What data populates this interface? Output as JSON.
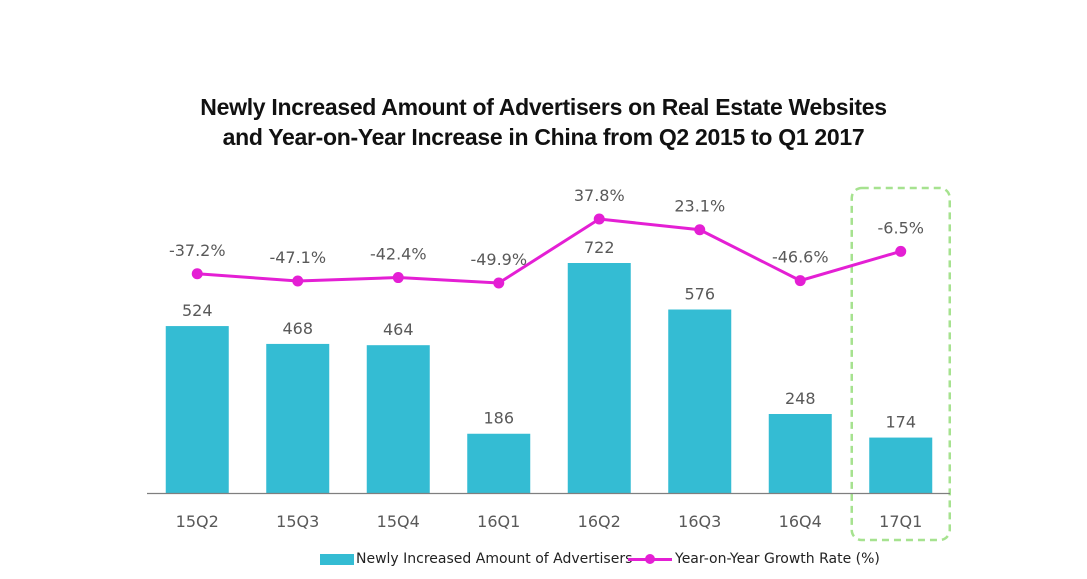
{
  "colors": {
    "bar": "#34bcd3",
    "line": "#e41fd4",
    "axis": "#7f7f7f",
    "label": "#595959",
    "highlight_box": "#a6e28f"
  },
  "chart_data": {
    "type": "bar",
    "title_lines": [
      "Newly Increased Amount of Advertisers on Real Estate Websites",
      "and Year-on-Year Increase in China from Q2 2015 to Q1 2017"
    ],
    "categories": [
      "15Q2",
      "15Q3",
      "15Q4",
      "16Q1",
      "16Q2",
      "16Q3",
      "16Q4",
      "17Q1"
    ],
    "series": [
      {
        "name": "Newly Increased Amount of Advertisers",
        "type": "bar",
        "values": [
          524,
          468,
          464,
          186,
          722,
          576,
          248,
          174
        ],
        "labels": [
          "524",
          "468",
          "464",
          "186",
          "722",
          "576",
          "248",
          "174"
        ]
      },
      {
        "name": "Year-on-Year Growth Rate (%)",
        "type": "line",
        "values": [
          -37.2,
          -47.1,
          -42.4,
          -49.9,
          37.8,
          23.1,
          -46.6,
          -6.5
        ],
        "labels": [
          "-37.2%",
          "-47.1%",
          "-42.4%",
          "-49.9%",
          "37.8%",
          "23.1%",
          "-46.6%",
          "-6.5%"
        ]
      }
    ],
    "highlighted_category": "17Q1",
    "legend_position": "bottom",
    "grid": false
  }
}
